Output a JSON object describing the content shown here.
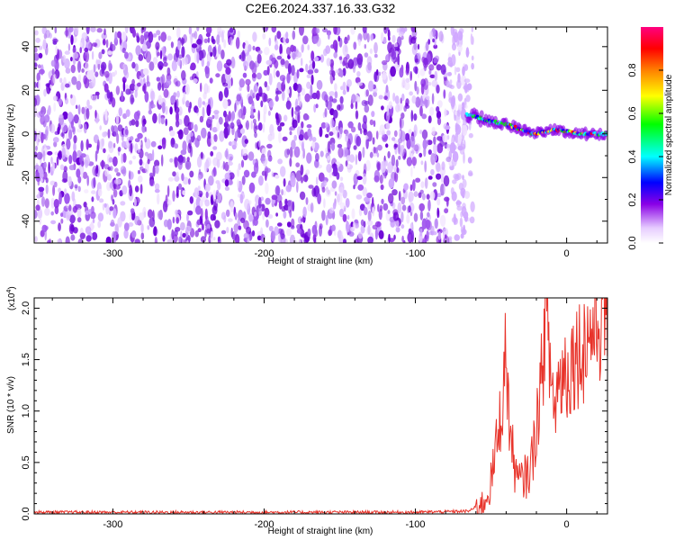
{
  "title": "C2E6.2024.337.16.33.G32",
  "chart_data": [
    {
      "type": "heatmap",
      "xlabel": "Height of straight line (km)",
      "ylabel": "Frequency (Hz)",
      "xlim": [
        -352,
        27
      ],
      "ylim": [
        -50,
        49
      ],
      "x_ticks": [
        -300,
        -200,
        -100,
        0
      ],
      "x_tick_labels": [
        "-300",
        "-200",
        "-100",
        "0"
      ],
      "y_ticks": [
        40,
        20,
        0,
        -20,
        -40
      ],
      "y_tick_labels": [
        "40",
        "20",
        "0",
        "-20",
        "-40"
      ],
      "noise_region_x": [
        -352,
        -66
      ],
      "signal_ridge": {
        "x": [
          -66,
          -60,
          -52,
          -45,
          -38,
          -30,
          -22,
          -15,
          -8,
          0,
          8,
          15,
          22,
          27
        ],
        "y": [
          9,
          8,
          6,
          5,
          4,
          2,
          0,
          1,
          2,
          1,
          0,
          0,
          0,
          0
        ]
      },
      "colorbar": {
        "label": "Normalized spectral amplitude",
        "range": [
          0,
          1
        ],
        "ticks": [
          0.0,
          0.2,
          0.4,
          0.6,
          0.8
        ],
        "tick_labels": [
          "0.0",
          "0.2",
          "0.4",
          "0.6",
          "0.8"
        ],
        "colors": [
          "#ffffff",
          "#e6ccff",
          "#8a00e6",
          "#0000ff",
          "#00ffff",
          "#00ff00",
          "#ffff00",
          "#ff8000",
          "#ff0000",
          "#ff0080"
        ]
      }
    },
    {
      "type": "line",
      "xlabel": "Height of straight line (km)",
      "ylabel": "SNR (10 * v/v)",
      "y_scale_label": "(x10",
      "y_scale_exp": "4",
      "y_scale_close": ")",
      "xlim": [
        -352,
        27
      ],
      "ylim": [
        0,
        2.1
      ],
      "x_ticks": [
        -300,
        -200,
        -100,
        0
      ],
      "x_tick_labels": [
        "-300",
        "-200",
        "-100",
        "0"
      ],
      "y_ticks": [
        0.0,
        0.5,
        1.0,
        1.5,
        2.0
      ],
      "y_tick_labels": [
        "0.0",
        "0.5",
        "1.0",
        "1.5",
        "2.0"
      ],
      "color": "#e8332a",
      "series": [
        {
          "x": [
            -352,
            -100,
            -65,
            -55,
            -50,
            -45,
            -42,
            -40,
            -38,
            -35,
            -32,
            -28,
            -25,
            -22,
            -20,
            -18,
            -16,
            -14,
            -12,
            -10,
            -8,
            -6,
            -4,
            -2,
            0,
            5,
            10,
            15,
            20,
            25,
            27
          ],
          "y": [
            0.01,
            0.01,
            0.02,
            0.1,
            0.3,
            0.8,
            1.2,
            1.6,
            0.9,
            0.5,
            0.3,
            0.35,
            0.4,
            0.6,
            0.9,
            1.1,
            1.4,
            2.1,
            1.6,
            1.3,
            1.0,
            1.25,
            1.3,
            1.45,
            1.35,
            1.55,
            1.6,
            1.75,
            1.85,
            1.95,
            2.05
          ]
        }
      ]
    }
  ]
}
